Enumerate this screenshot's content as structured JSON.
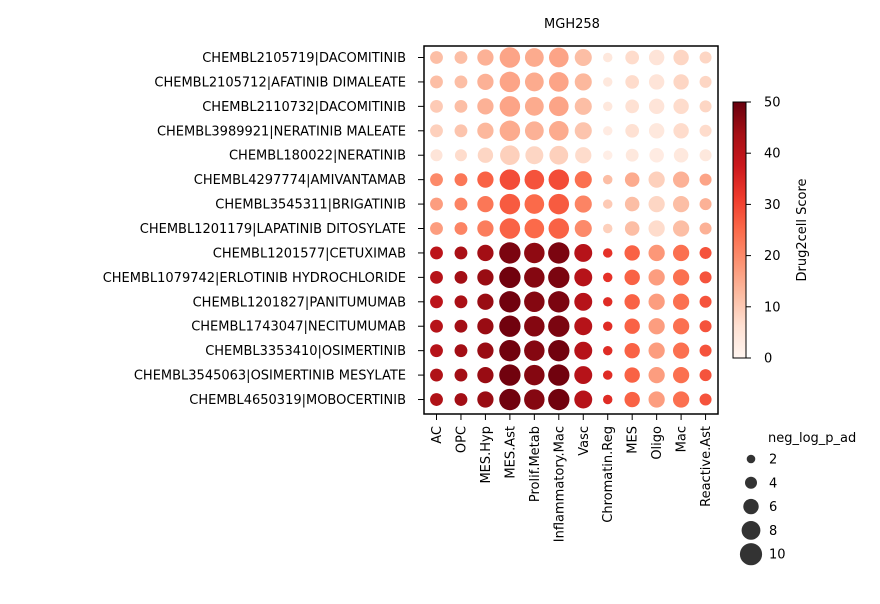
{
  "chart_data": {
    "type": "dotplot",
    "title": "MGH258",
    "rows": [
      "CHEMBL2105719|DACOMITINIB",
      "CHEMBL2105712|AFATINIB DIMALEATE",
      "CHEMBL2110732|DACOMITINIB",
      "CHEMBL3989921|NERATINIB MALEATE",
      "CHEMBL180022|NERATINIB",
      "CHEMBL4297774|AMIVANTAMAB",
      "CHEMBL3545311|BRIGATINIB",
      "CHEMBL1201179|LAPATINIB DITOSYLATE",
      "CHEMBL1201577|CETUXIMAB",
      "CHEMBL1079742|ERLOTINIB HYDROCHLORIDE",
      "CHEMBL1201827|PANITUMUMAB",
      "CHEMBL1743047|NECITUMUMAB",
      "CHEMBL3353410|OSIMERTINIB",
      "CHEMBL3545063|OSIMERTINIB MESYLATE",
      "CHEMBL4650319|MOBOCERTINIB"
    ],
    "columns": [
      "AC",
      "OPC",
      "MES.Hyp",
      "MES.Ast",
      "Prolif.Metab",
      "Inflammatory.Mac",
      "Vasc",
      "Chromatin.Reg",
      "MES",
      "Oligo",
      "Mac",
      "Reactive.Ast"
    ],
    "scores": [
      [
        12,
        12,
        14,
        16,
        15,
        16,
        12,
        4,
        7,
        5,
        8,
        8
      ],
      [
        12,
        12,
        14,
        16,
        15,
        16,
        13,
        4,
        7,
        5,
        8,
        8
      ],
      [
        10,
        12,
        14,
        16,
        15,
        16,
        12,
        4,
        6,
        5,
        7,
        8
      ],
      [
        9,
        11,
        13,
        15,
        14,
        15,
        11,
        3,
        6,
        4,
        7,
        7
      ],
      [
        5,
        7,
        8,
        9,
        8,
        9,
        7,
        2,
        4,
        3,
        4,
        4
      ],
      [
        20,
        23,
        26,
        29,
        28,
        29,
        24,
        12,
        15,
        9,
        14,
        16
      ],
      [
        17,
        21,
        23,
        27,
        25,
        27,
        21,
        10,
        12,
        8,
        12,
        14
      ],
      [
        17,
        21,
        22,
        26,
        25,
        26,
        20,
        9,
        12,
        7,
        12,
        14
      ],
      [
        40,
        43,
        44,
        48,
        46,
        48,
        41,
        33,
        26,
        18,
        24,
        28
      ],
      [
        41,
        44,
        45,
        49,
        47,
        48,
        41,
        33,
        26,
        17,
        24,
        28
      ],
      [
        40,
        43,
        45,
        49,
        47,
        48,
        41,
        34,
        26,
        17,
        24,
        28
      ],
      [
        41,
        44,
        45,
        49,
        47,
        48,
        41,
        34,
        26,
        17,
        24,
        28
      ],
      [
        41,
        44,
        45,
        49,
        47,
        49,
        41,
        34,
        26,
        17,
        24,
        28
      ],
      [
        42,
        44,
        45,
        49,
        47,
        49,
        41,
        34,
        26,
        17,
        24,
        28
      ],
      [
        42,
        44,
        45,
        49,
        47,
        49,
        41,
        34,
        26,
        17,
        24,
        28
      ]
    ],
    "neg_log_p_adj": [
      [
        4.5,
        4.5,
        6.5,
        9,
        8,
        8.5,
        7,
        2.5,
        5,
        6,
        6,
        4
      ],
      [
        4.5,
        4.5,
        6.5,
        9,
        8,
        8.5,
        7,
        2.5,
        5,
        6,
        6,
        4
      ],
      [
        4.5,
        4.5,
        6.5,
        9,
        8,
        8.5,
        7,
        2.5,
        5,
        6,
        6,
        4
      ],
      [
        4.5,
        4.5,
        6.5,
        9,
        8,
        8.5,
        7,
        2.5,
        5,
        6,
        6,
        4
      ],
      [
        4,
        4,
        6,
        8.5,
        7.5,
        8,
        6.5,
        2.5,
        4.5,
        5.5,
        5.5,
        4
      ],
      [
        4.5,
        4.5,
        6.5,
        9,
        8.5,
        9,
        7,
        2.5,
        5.5,
        6.5,
        6.5,
        4
      ],
      [
        4.5,
        4.5,
        6.5,
        9,
        8.5,
        9,
        7,
        2.5,
        5.5,
        6.5,
        6.5,
        4
      ],
      [
        4.5,
        4.5,
        6.5,
        9,
        8.5,
        9,
        7,
        2.5,
        5.5,
        6.5,
        6.5,
        4
      ],
      [
        4.5,
        4.5,
        6.5,
        9.5,
        9,
        9.5,
        7.5,
        2.5,
        6,
        6.5,
        6.5,
        4
      ],
      [
        4.5,
        4.5,
        6.5,
        9.5,
        9,
        9.5,
        7.5,
        2.5,
        6,
        6.5,
        6.5,
        4
      ],
      [
        4.5,
        4.5,
        6.5,
        9.5,
        9,
        9.5,
        7.5,
        2.5,
        6,
        6.5,
        6.5,
        4
      ],
      [
        4.5,
        4.5,
        6.5,
        9.5,
        9,
        9.5,
        7.5,
        2.5,
        6,
        6.5,
        6.5,
        4
      ],
      [
        4.5,
        4.5,
        6.5,
        9.5,
        9,
        9.5,
        7.5,
        2.5,
        6,
        6.5,
        6.5,
        4
      ],
      [
        4.5,
        4.5,
        6.5,
        9.5,
        9,
        9.5,
        7.5,
        2.5,
        6,
        6.5,
        6.5,
        4
      ],
      [
        4.5,
        4.5,
        6.5,
        9.5,
        9,
        9.5,
        7.5,
        2.5,
        6,
        6.5,
        6.5,
        4
      ]
    ],
    "colorbar": {
      "label": "Drug2cell Score",
      "min": 0,
      "max": 50,
      "ticks": [
        0,
        10,
        20,
        30,
        40,
        50
      ],
      "colormap": "Reds",
      "stops": [
        "#fff5f0",
        "#fee0d2",
        "#fcbba1",
        "#fc9272",
        "#fb6a4a",
        "#ef3b2c",
        "#cb181d",
        "#a50f15",
        "#67000d"
      ]
    },
    "size_legend": {
      "title": "neg_log_p_ad",
      "values": [
        2,
        4,
        6,
        8,
        10
      ],
      "color": "#333333"
    },
    "grid": false
  }
}
